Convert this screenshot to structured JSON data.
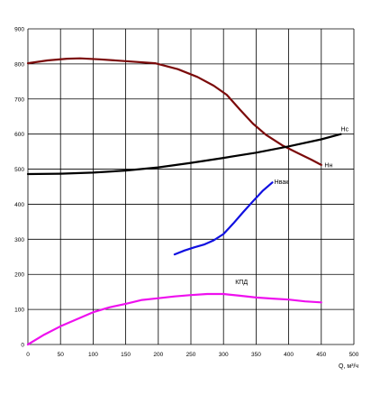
{
  "chart_data": {
    "type": "line",
    "title": "",
    "xlabel": "Q, м³/ч",
    "ylabel": "",
    "xlim": [
      0,
      500
    ],
    "ylim": [
      0,
      900
    ],
    "x_ticks": [
      0,
      50,
      100,
      150,
      200,
      250,
      300,
      350,
      400,
      450,
      500
    ],
    "y_ticks": [
      0,
      100,
      200,
      300,
      400,
      500,
      600,
      700,
      800,
      900
    ],
    "grid": true,
    "series": [
      {
        "name": "Hн",
        "color": "#7b0a0a",
        "label_at": [
          455,
          505
        ],
        "points": [
          [
            0,
            802
          ],
          [
            30,
            810
          ],
          [
            60,
            815
          ],
          [
            80,
            816
          ],
          [
            110,
            813
          ],
          [
            150,
            808
          ],
          [
            195,
            802
          ],
          [
            230,
            785
          ],
          [
            260,
            763
          ],
          [
            285,
            738
          ],
          [
            305,
            712
          ],
          [
            325,
            670
          ],
          [
            345,
            630
          ],
          [
            365,
            598
          ],
          [
            390,
            568
          ],
          [
            415,
            545
          ],
          [
            435,
            527
          ],
          [
            450,
            512
          ]
        ]
      },
      {
        "name": "Hс",
        "color": "#000000",
        "label_at": [
          480,
          608
        ],
        "points": [
          [
            0,
            486
          ],
          [
            50,
            487
          ],
          [
            100,
            490
          ],
          [
            150,
            496
          ],
          [
            200,
            505
          ],
          [
            250,
            518
          ],
          [
            300,
            532
          ],
          [
            350,
            547
          ],
          [
            400,
            565
          ],
          [
            450,
            585
          ],
          [
            480,
            600
          ]
        ]
      },
      {
        "name": "Hвак",
        "color": "#1010e0",
        "label_at": [
          378,
          458
        ],
        "points": [
          [
            225,
            257
          ],
          [
            240,
            268
          ],
          [
            255,
            277
          ],
          [
            270,
            285
          ],
          [
            285,
            297
          ],
          [
            300,
            315
          ],
          [
            315,
            345
          ],
          [
            330,
            377
          ],
          [
            345,
            408
          ],
          [
            360,
            438
          ],
          [
            375,
            462
          ]
        ]
      },
      {
        "name": "КПД",
        "color": "#ee10ee",
        "label_at": [
          318,
          172
        ],
        "points": [
          [
            0,
            0
          ],
          [
            25,
            28
          ],
          [
            50,
            52
          ],
          [
            75,
            72
          ],
          [
            100,
            92
          ],
          [
            125,
            106
          ],
          [
            150,
            116
          ],
          [
            175,
            127
          ],
          [
            200,
            132
          ],
          [
            225,
            137
          ],
          [
            250,
            141
          ],
          [
            275,
            144
          ],
          [
            300,
            144
          ],
          [
            325,
            139
          ],
          [
            350,
            134
          ],
          [
            375,
            131
          ],
          [
            400,
            128
          ],
          [
            425,
            123
          ],
          [
            450,
            120
          ]
        ]
      }
    ]
  }
}
